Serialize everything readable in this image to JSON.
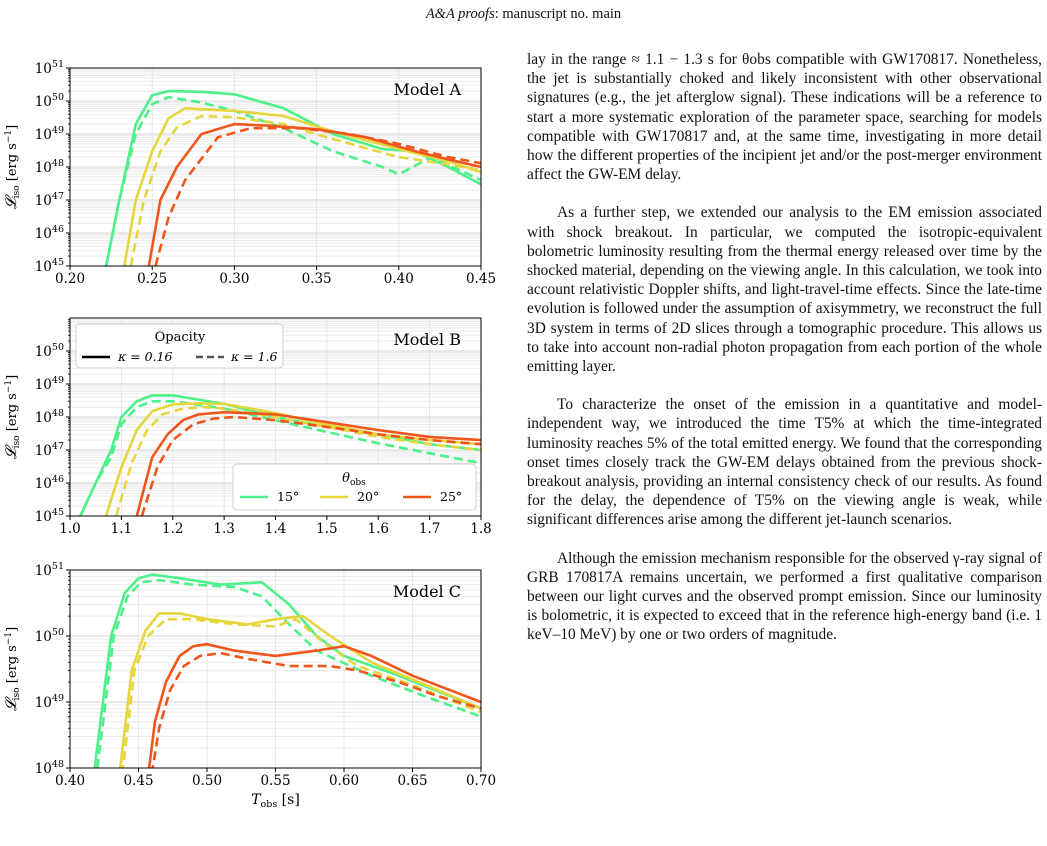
{
  "header": {
    "journal": "A&A proofs",
    "rest": ": manuscript no. main"
  },
  "text": {
    "paragraphs": [
      "lay in the range ≈ 1.1 − 1.3 s for θobs compatible with GW170817. Nonetheless, the jet is substantially choked and likely inconsistent with other observational signatures (e.g., the jet afterglow signal). These indications will be a reference to start a more systematic exploration of the parameter space, searching for models compatible with GW170817 and, at the same time, investigating in more detail how the different properties of the incipient jet and/or the post-merger environment affect the GW-EM delay.",
      "As a further step, we extended our analysis to the EM emission associated with shock breakout. In particular, we computed the isotropic-equivalent bolometric luminosity resulting from the thermal energy released over time by the shocked material, depending on the viewing angle. In this calculation, we took into account relativistic Doppler shifts, and light-travel-time effects. Since the late-time evolution is followed under the assumption of axisymmetry, we reconstruct the full 3D system in terms of 2D slices through a tomographic procedure. This allows us to take into account non-radial photon propagation from each portion of the whole emitting layer.",
      "To characterize the onset of the emission in a quantitative and model-independent way, we introduced the time T5% at which the time-integrated luminosity reaches 5% of the total emitted energy. We found that the corresponding onset times closely track the GW-EM delays obtained from the previous shock-breakout analysis, providing an internal consistency check of our results. As found for the delay, the dependence of T5% on the viewing angle is weak, while significant differences arise among the different jet-launch scenarios.",
      "Although the emission mechanism responsible for the observed γ-ray signal of GRB 170817A remains uncertain, we performed a first qualitative comparison between our light curves and the observed prompt emission. Since our luminosity is bolometric, it is expected to exceed that in the reference high-energy band (i.e. 1 keV–10 MeV) by one or two orders of magnitude."
    ]
  },
  "chart_data": [
    {
      "type": "line",
      "title": "Model A",
      "xlabel": "",
      "ylabel": "𝓛iso [erg s⁻¹]",
      "yscale": "log",
      "xlim": [
        0.2,
        0.45
      ],
      "ylim": [
        1e+45,
        1e+51
      ],
      "xticks": [
        "0.20",
        "0.25",
        "0.30",
        "0.35",
        "0.40",
        "0.45"
      ],
      "yticks": [
        "10^45",
        "10^46",
        "10^47",
        "10^48",
        "10^49",
        "10^50",
        "10^51"
      ],
      "grid": true,
      "series": [
        {
          "theta": "15°",
          "kappa": "0.16",
          "style": "solid",
          "color": "#4ef08a",
          "x": [
            0.222,
            0.23,
            0.24,
            0.25,
            0.26,
            0.28,
            0.3,
            0.33,
            0.36,
            0.39,
            0.41,
            0.43,
            0.45
          ],
          "y": [
            1e+45,
            1e+47,
            2e+49,
            1.5e+50,
            2e+50,
            1.9e+50,
            1.6e+50,
            6e+49,
            1e+49,
            3.5e+48,
            3e+48,
            1e+48,
            3e+47
          ]
        },
        {
          "theta": "15°",
          "kappa": "1.6",
          "style": "dashed",
          "color": "#4ef08a",
          "x": [
            0.222,
            0.23,
            0.24,
            0.25,
            0.26,
            0.28,
            0.3,
            0.33,
            0.36,
            0.39,
            0.4,
            0.42,
            0.45
          ],
          "y": [
            1e+45,
            1e+47,
            1e+49,
            8e+49,
            1.3e+50,
            9e+49,
            5e+49,
            1.5e+49,
            3e+48,
            1e+48,
            6e+47,
            2e+48,
            4e+47
          ]
        },
        {
          "theta": "20°",
          "kappa": "0.16",
          "style": "solid",
          "color": "#e6d63e",
          "x": [
            0.233,
            0.24,
            0.25,
            0.26,
            0.27,
            0.3,
            0.33,
            0.36,
            0.4,
            0.43,
            0.45
          ],
          "y": [
            1e+45,
            1e+47,
            3e+48,
            3e+49,
            6e+49,
            5e+49,
            3.5e+49,
            1.2e+49,
            3.5e+48,
            1.5e+48,
            7e+47
          ]
        },
        {
          "theta": "20°",
          "kappa": "1.6",
          "style": "dashed",
          "color": "#e6d63e",
          "x": [
            0.237,
            0.245,
            0.255,
            0.265,
            0.28,
            0.3,
            0.33,
            0.36,
            0.4,
            0.43,
            0.45
          ],
          "y": [
            1e+45,
            1e+47,
            3e+48,
            1.6e+49,
            3.5e+49,
            3.2e+49,
            2e+49,
            7e+48,
            2e+48,
            1.2e+48,
            8e+47
          ]
        },
        {
          "theta": "25°",
          "kappa": "0.16",
          "style": "solid",
          "color": "#f0561c",
          "x": [
            0.248,
            0.255,
            0.265,
            0.28,
            0.3,
            0.32,
            0.35,
            0.38,
            0.41,
            0.43,
            0.45
          ],
          "y": [
            1e+45,
            1e+47,
            1e+48,
            1e+49,
            2e+49,
            1.8e+49,
            1.4e+49,
            8e+48,
            3e+48,
            1.7e+48,
            1e+48
          ]
        },
        {
          "theta": "25°",
          "kappa": "1.6",
          "style": "dashed",
          "color": "#f0561c",
          "x": [
            0.252,
            0.26,
            0.27,
            0.29,
            0.31,
            0.34,
            0.37,
            0.4,
            0.43,
            0.45
          ],
          "y": [
            1e+45,
            3e+46,
            4e+47,
            8e+48,
            1.5e+49,
            1.5e+49,
            1e+49,
            5e+48,
            2e+48,
            1.3e+48
          ]
        }
      ]
    },
    {
      "type": "line",
      "title": "Model B",
      "xlabel": "",
      "ylabel": "𝓛iso [erg s⁻¹]",
      "yscale": "log",
      "xlim": [
        1.0,
        1.8
      ],
      "ylim": [
        1e+45,
        1e+51
      ],
      "xticks": [
        "1.0",
        "1.1",
        "1.2",
        "1.3",
        "1.4",
        "1.5",
        "1.6",
        "1.7",
        "1.8"
      ],
      "yticks": [
        "10^45",
        "10^46",
        "10^47",
        "10^48",
        "10^49",
        "10^50"
      ],
      "grid": true,
      "legend_opacity": {
        "title": "Opacity",
        "entries": [
          "κ = 0.16",
          "κ = 1.6"
        ],
        "placement": "top-left"
      },
      "legend_theta": {
        "title": "θobs",
        "entries": [
          "15°",
          "20°",
          "25°"
        ],
        "placement": "lower-right"
      },
      "series": [
        {
          "theta": "15°",
          "kappa": "0.16",
          "style": "solid",
          "color": "#4ef08a",
          "x": [
            1.02,
            1.05,
            1.08,
            1.1,
            1.13,
            1.16,
            1.2,
            1.3,
            1.4,
            1.5,
            1.6,
            1.7,
            1.8
          ],
          "y": [
            1e+45,
            1e+46,
            1e+47,
            1e+48,
            3e+48,
            4.5e+48,
            4.5e+48,
            2.5e+48,
            1e+48,
            5e+47,
            3e+47,
            1.5e+47,
            1e+47
          ]
        },
        {
          "theta": "15°",
          "kappa": "1.6",
          "style": "dashed",
          "color": "#4ef08a",
          "x": [
            1.02,
            1.05,
            1.08,
            1.1,
            1.13,
            1.16,
            1.2,
            1.3,
            1.4,
            1.5,
            1.6,
            1.7,
            1.8
          ],
          "y": [
            1e+45,
            1e+46,
            6e+46,
            6e+47,
            2e+48,
            3e+48,
            3e+48,
            1.8e+48,
            8e+47,
            3.5e+47,
            1.6e+47,
            8e+46,
            4e+46
          ]
        },
        {
          "theta": "20°",
          "kappa": "0.16",
          "style": "solid",
          "color": "#e6d63e",
          "x": [
            1.07,
            1.1,
            1.13,
            1.16,
            1.2,
            1.25,
            1.3,
            1.4,
            1.5,
            1.6,
            1.7,
            1.8
          ],
          "y": [
            1e+45,
            3e+46,
            4e+47,
            1.5e+48,
            2.4e+48,
            2.6e+48,
            2.5e+48,
            1.3e+48,
            6e+47,
            3e+47,
            2e+47,
            1.5e+47
          ]
        },
        {
          "theta": "20°",
          "kappa": "1.6",
          "style": "dashed",
          "color": "#e6d63e",
          "x": [
            1.09,
            1.12,
            1.15,
            1.18,
            1.22,
            1.26,
            1.3,
            1.4,
            1.5,
            1.6,
            1.7,
            1.8
          ],
          "y": [
            1e+45,
            4e+46,
            4e+47,
            1.2e+48,
            1.8e+48,
            2e+48,
            1.8e+48,
            1e+48,
            5e+47,
            2.5e+47,
            1.5e+47,
            1e+47
          ]
        },
        {
          "theta": "25°",
          "kappa": "0.16",
          "style": "solid",
          "color": "#f0561c",
          "x": [
            1.13,
            1.16,
            1.19,
            1.22,
            1.25,
            1.3,
            1.4,
            1.5,
            1.6,
            1.7,
            1.8
          ],
          "y": [
            1e+45,
            6e+46,
            3e+47,
            8e+47,
            1.2e+48,
            1.4e+48,
            1.2e+48,
            7e+47,
            4e+47,
            2.5e+47,
            2e+47
          ]
        },
        {
          "theta": "25°",
          "kappa": "1.6",
          "style": "dashed",
          "color": "#f0561c",
          "x": [
            1.14,
            1.17,
            1.2,
            1.24,
            1.28,
            1.32,
            1.4,
            1.5,
            1.6,
            1.7,
            1.8
          ],
          "y": [
            1e+45,
            3e+46,
            2e+47,
            6e+47,
            9e+47,
            1e+48,
            8e+47,
            5e+47,
            3e+47,
            2e+47,
            1.5e+47
          ]
        }
      ]
    },
    {
      "type": "line",
      "title": "Model C",
      "xlabel": "Tobs [s]",
      "ylabel": "𝓛iso [erg s⁻¹]",
      "yscale": "log",
      "xlim": [
        0.4,
        0.7
      ],
      "ylim": [
        1e+48,
        1e+51
      ],
      "xticks": [
        "0.40",
        "0.45",
        "0.50",
        "0.55",
        "0.60",
        "0.65",
        "0.70"
      ],
      "yticks": [
        "10^48",
        "10^49",
        "10^50",
        "10^51"
      ],
      "grid": true,
      "series": [
        {
          "theta": "15°",
          "kappa": "0.16",
          "style": "solid",
          "color": "#4ef08a",
          "x": [
            0.418,
            0.43,
            0.44,
            0.45,
            0.46,
            0.48,
            0.51,
            0.54,
            0.56,
            0.58,
            0.6,
            0.64,
            0.7
          ],
          "y": [
            1e+48,
            1e+50,
            4.5e+50,
            7.5e+50,
            8.5e+50,
            7.5e+50,
            6e+50,
            6.5e+50,
            3e+50,
            1e+50,
            5e+49,
            2.5e+49,
            8e+48
          ]
        },
        {
          "theta": "15°",
          "kappa": "1.6",
          "style": "dashed",
          "color": "#4ef08a",
          "x": [
            0.42,
            0.432,
            0.442,
            0.452,
            0.465,
            0.49,
            0.52,
            0.54,
            0.56,
            0.58,
            0.62,
            0.66,
            0.7
          ],
          "y": [
            1e+48,
            1e+50,
            4e+50,
            6.5e+50,
            7e+50,
            6e+50,
            5.5e+50,
            4e+50,
            1.5e+50,
            6e+49,
            2.5e+49,
            1.2e+49,
            6e+48
          ]
        },
        {
          "theta": "20°",
          "kappa": "0.16",
          "style": "solid",
          "color": "#e6d63e",
          "x": [
            0.435,
            0.445,
            0.455,
            0.465,
            0.48,
            0.5,
            0.53,
            0.55,
            0.57,
            0.59,
            0.62,
            0.66,
            0.7
          ],
          "y": [
            5e+47,
            3e+49,
            1.2e+50,
            2.2e+50,
            2.2e+50,
            1.8e+50,
            1.5e+50,
            1.8e+50,
            2e+50,
            1e+50,
            4e+49,
            1.8e+49,
            8e+48
          ]
        },
        {
          "theta": "20°",
          "kappa": "1.6",
          "style": "dashed",
          "color": "#e6d63e",
          "x": [
            0.437,
            0.447,
            0.457,
            0.47,
            0.49,
            0.52,
            0.55,
            0.565,
            0.585,
            0.61,
            0.65,
            0.7
          ],
          "y": [
            5e+47,
            3e+49,
            1e+50,
            1.8e+50,
            1.8e+50,
            1.5e+50,
            1.4e+50,
            1.8e+50,
            8e+49,
            3.5e+49,
            1.8e+49,
            7e+48
          ]
        },
        {
          "theta": "25°",
          "kappa": "0.16",
          "style": "solid",
          "color": "#f0561c",
          "x": [
            0.456,
            0.462,
            0.47,
            0.48,
            0.49,
            0.5,
            0.52,
            0.55,
            0.58,
            0.6,
            0.62,
            0.65,
            0.7
          ],
          "y": [
            5e+47,
            5e+48,
            2e+49,
            5e+49,
            7e+49,
            7.5e+49,
            6e+49,
            5e+49,
            6e+49,
            7e+49,
            5e+49,
            2.5e+49,
            1e+49
          ]
        },
        {
          "theta": "25°",
          "kappa": "1.6",
          "style": "dashed",
          "color": "#f0561c",
          "x": [
            0.458,
            0.465,
            0.473,
            0.483,
            0.495,
            0.51,
            0.53,
            0.56,
            0.59,
            0.61,
            0.64,
            0.67,
            0.7
          ],
          "y": [
            5e+47,
            4e+48,
            1.5e+49,
            3.5e+49,
            5e+49,
            5.5e+49,
            4.5e+49,
            3.5e+49,
            3.5e+49,
            3e+49,
            2e+49,
            1.2e+49,
            8e+48
          ]
        }
      ]
    }
  ]
}
